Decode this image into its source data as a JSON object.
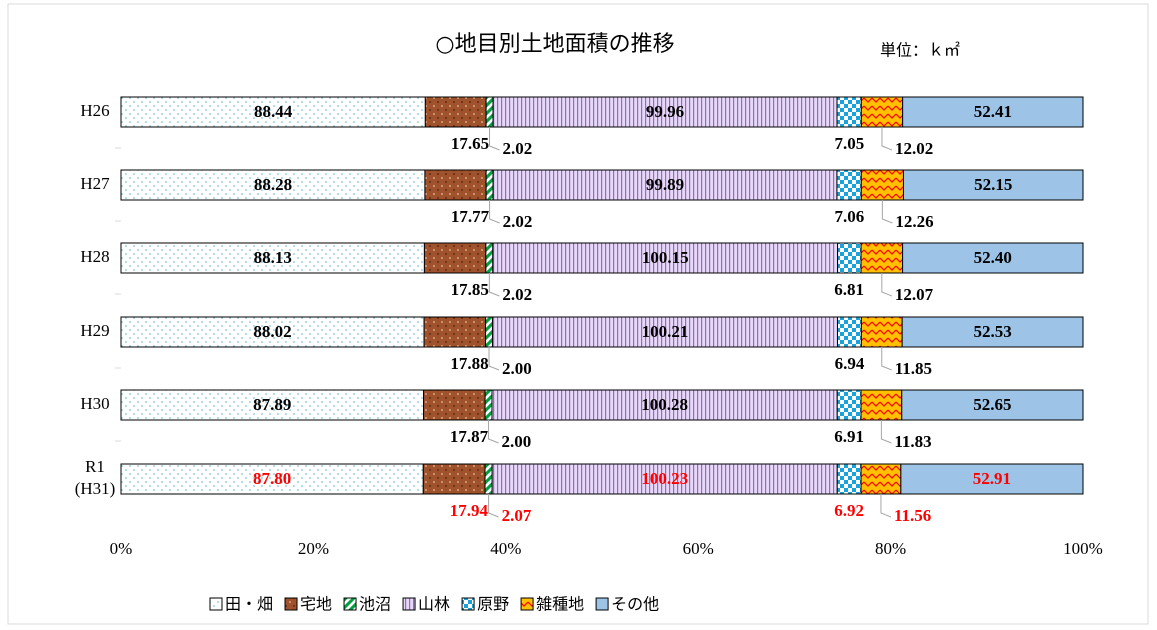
{
  "chart_data": {
    "type": "bar",
    "orientation": "horizontal",
    "stacking": "percent",
    "title": "○地目別土地面積の推移",
    "unit_label": "単位：ｋ㎡",
    "categories": [
      "H26",
      "H27",
      "H28",
      "H29",
      "H30",
      "R1\n(H31)"
    ],
    "series": [
      {
        "name": "田・畑",
        "color": "#ffffff",
        "pattern": "dots",
        "values": [
          88.44,
          88.28,
          88.13,
          88.02,
          87.89,
          87.8
        ],
        "value_labels": [
          "88.44",
          "88.28",
          "88.13",
          "88.02",
          "87.89",
          "87.80"
        ]
      },
      {
        "name": "宅地",
        "color": "#a0522d",
        "pattern": "brick",
        "values": [
          17.65,
          17.77,
          17.85,
          17.88,
          17.87,
          17.94
        ],
        "value_labels": [
          "17.65",
          "17.77",
          "17.85",
          "17.88",
          "17.87",
          "17.94"
        ]
      },
      {
        "name": "池沼",
        "color": "#ffffff",
        "pattern": "diagonal",
        "values": [
          2.02,
          2.02,
          2.02,
          2.0,
          2.0,
          2.07
        ],
        "value_labels": [
          "2.02",
          "2.02",
          "2.02",
          "2.00",
          "2.00",
          "2.07"
        ]
      },
      {
        "name": "山林",
        "color": "#e6d9f5",
        "pattern": "vstripes",
        "values": [
          99.96,
          99.89,
          100.15,
          100.21,
          100.28,
          100.23
        ],
        "value_labels": [
          "99.96",
          "99.89",
          "100.15",
          "100.21",
          "100.28",
          "100.23"
        ]
      },
      {
        "name": "原野",
        "color": "#1aa3d9",
        "pattern": "checker",
        "values": [
          7.05,
          7.06,
          6.81,
          6.94,
          6.91,
          6.92
        ],
        "value_labels": [
          "7.05",
          "7.06",
          "6.81",
          "6.94",
          "6.91",
          "6.92"
        ]
      },
      {
        "name": "雑種地",
        "color": "#ffc000",
        "pattern": "zigzag",
        "values": [
          12.02,
          12.26,
          12.07,
          11.85,
          11.83,
          11.56
        ],
        "value_labels": [
          "12.02",
          "12.26",
          "12.07",
          "11.85",
          "11.83",
          "11.56"
        ]
      },
      {
        "name": "その他",
        "color": "#9dc3e6",
        "pattern": "none",
        "values": [
          52.41,
          52.15,
          52.4,
          52.53,
          52.65,
          52.91
        ],
        "value_labels": [
          "52.41",
          "52.15",
          "52.40",
          "52.53",
          "52.65",
          "52.91"
        ]
      }
    ],
    "data_label_colors": [
      "#000000",
      "#000000",
      "#000000",
      "#000000",
      "#000000",
      "#ff0000"
    ],
    "xlim": [
      0,
      100
    ],
    "xticks": [
      {
        "value": 0,
        "label": "0%"
      },
      {
        "value": 20,
        "label": "20%"
      },
      {
        "value": 40,
        "label": "40%"
      },
      {
        "value": 60,
        "label": "60%"
      },
      {
        "value": 80,
        "label": "80%"
      },
      {
        "value": 100,
        "label": "100%"
      }
    ],
    "grid": false,
    "legend": "bottom"
  }
}
